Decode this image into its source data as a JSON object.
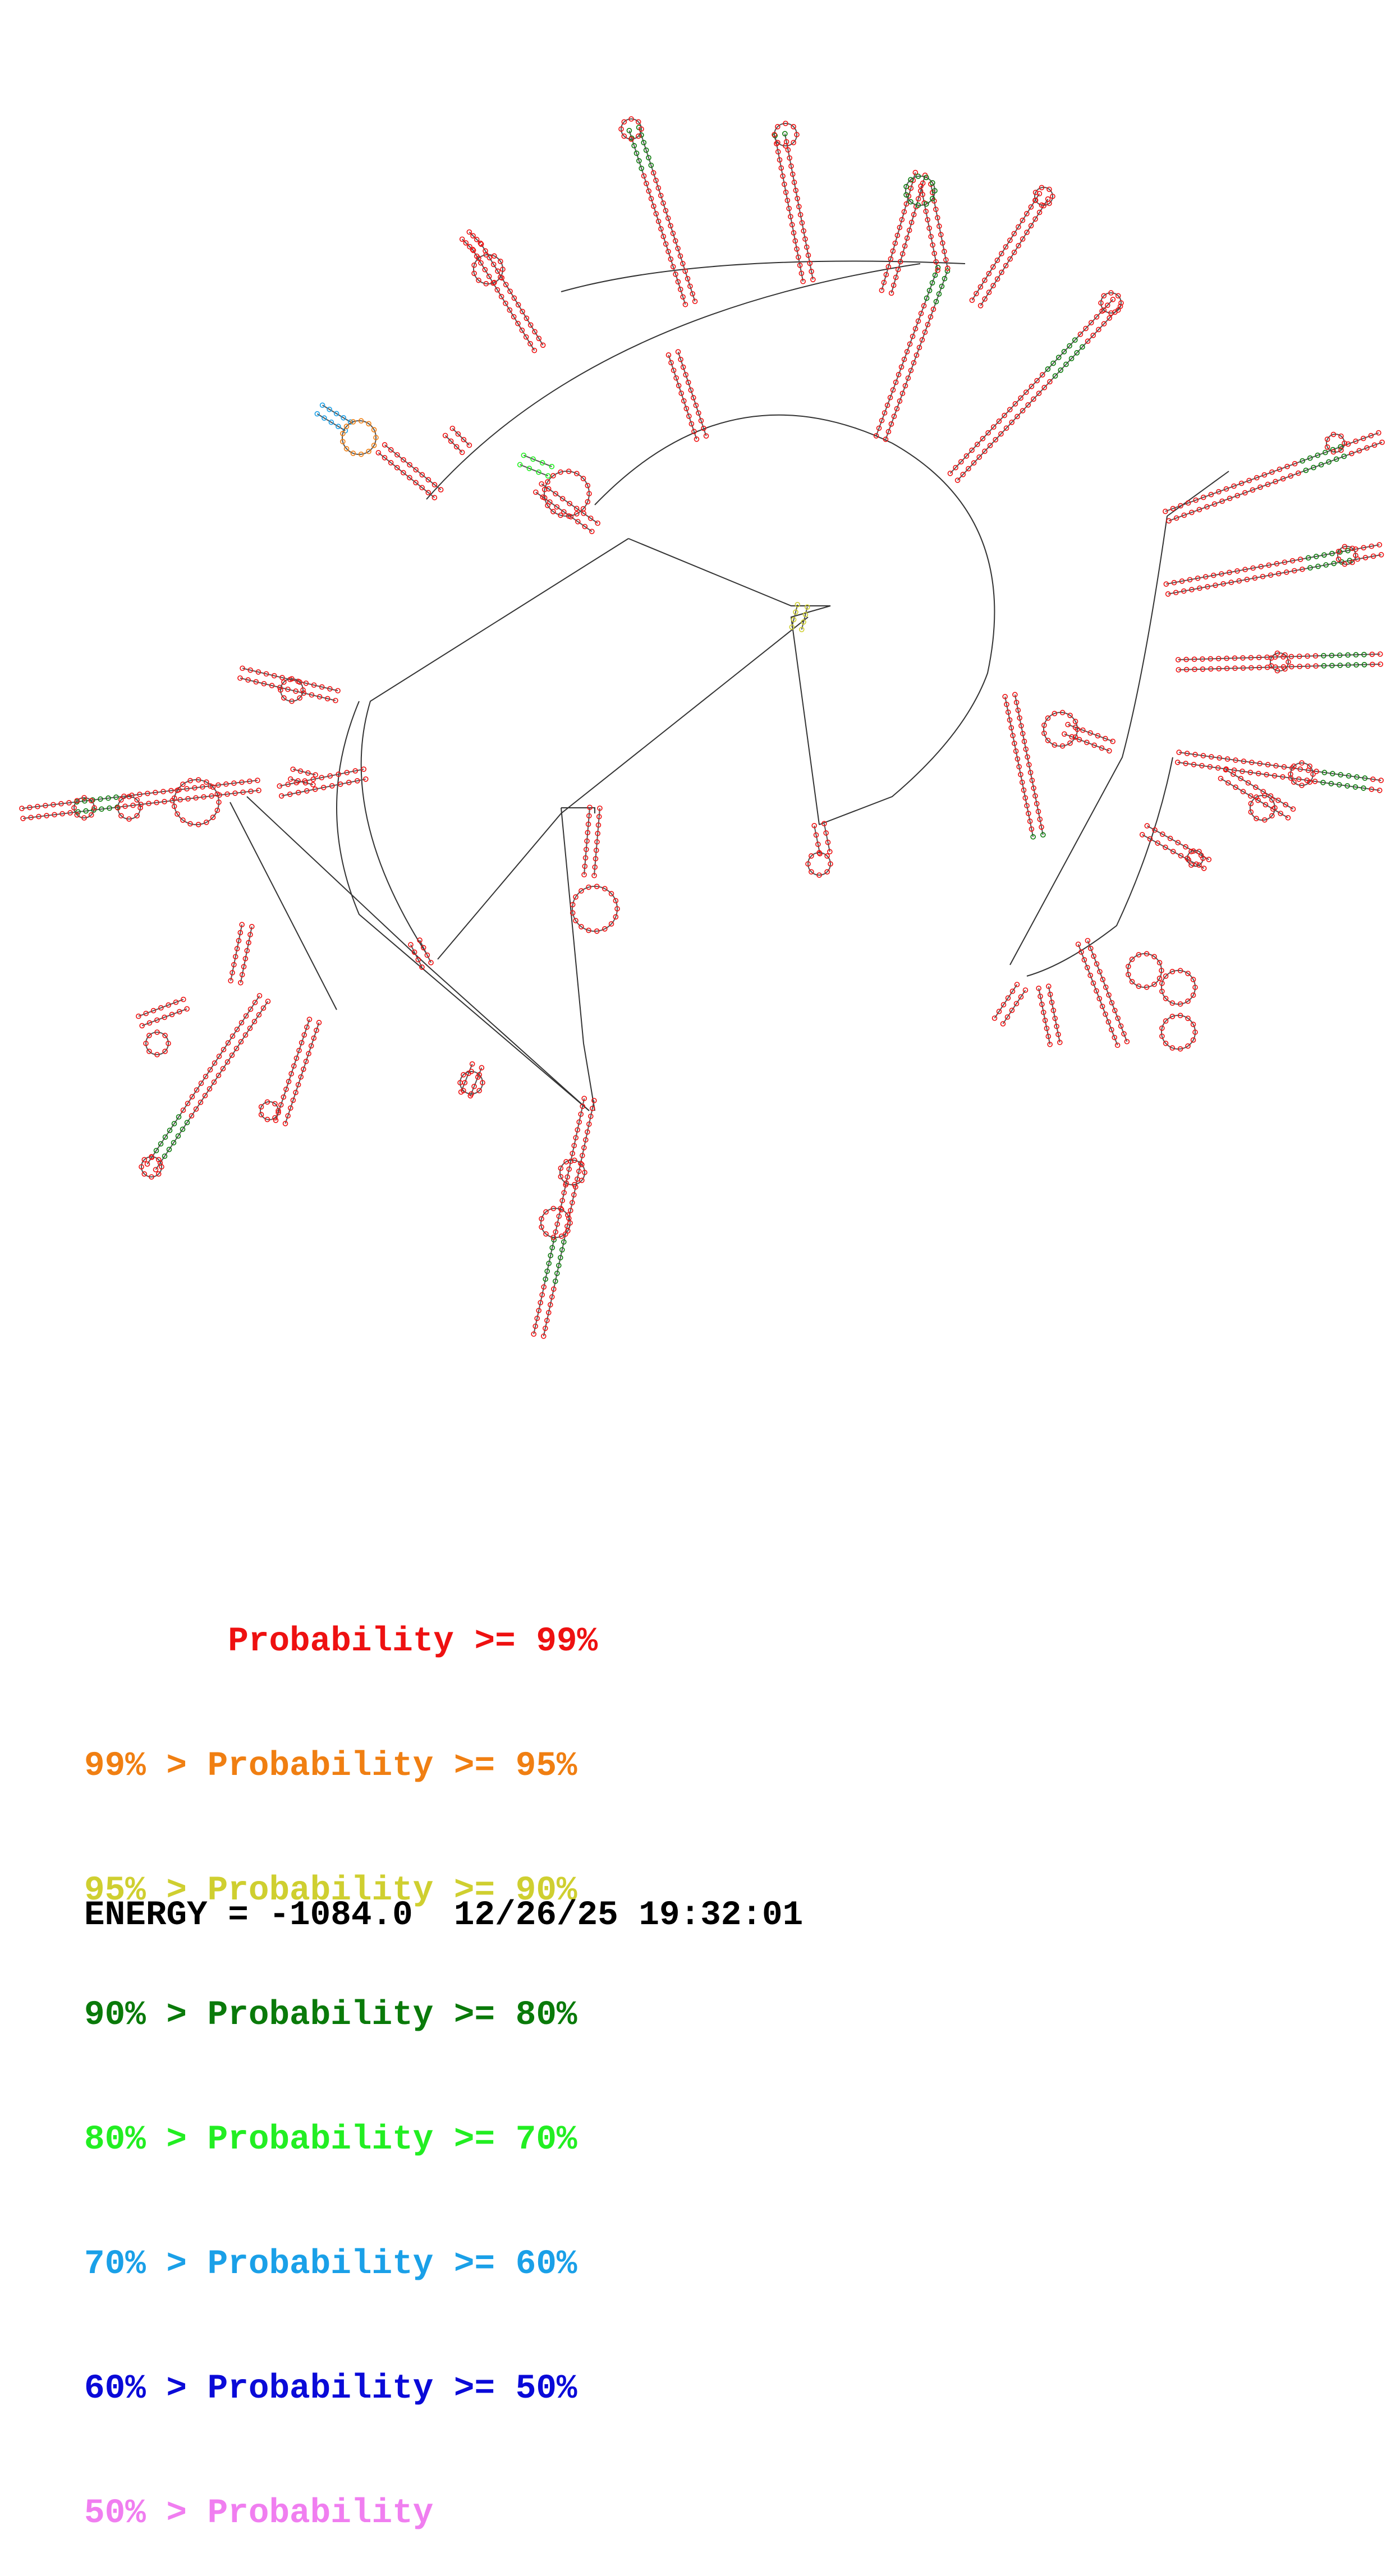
{
  "legend": {
    "rows": [
      {
        "label": "       Probability >= 99%",
        "color": "#ee1111"
      },
      {
        "label": "99% > Probability >= 95%",
        "color": "#f07f12"
      },
      {
        "label": "95% > Probability >= 90%",
        "color": "#cfcf30"
      },
      {
        "label": "90% > Probability >= 80%",
        "color": "#0a7a0a"
      },
      {
        "label": "80% > Probability >= 70%",
        "color": "#22ee22"
      },
      {
        "label": "70% > Probability >= 60%",
        "color": "#1aa0e8"
      },
      {
        "label": "60% > Probability >= 50%",
        "color": "#0a0ad8"
      },
      {
        "label": "50% > Probability",
        "color": "#f07ef0"
      }
    ]
  },
  "footer": {
    "energy_label": "ENERGY = -1084.0",
    "timestamp": "12/26/25 19:32:01"
  }
}
